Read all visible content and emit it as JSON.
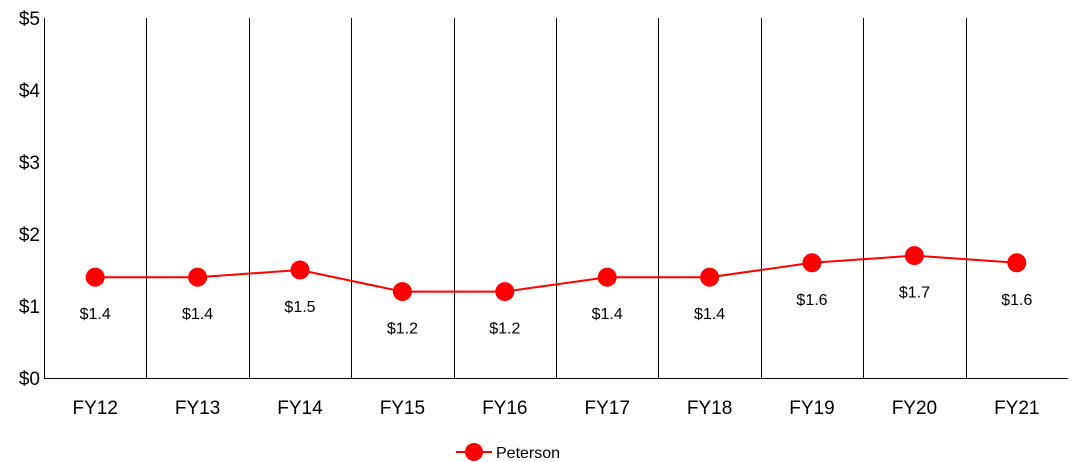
{
  "chart_data": {
    "type": "line",
    "title": "",
    "xlabel": "",
    "ylabel": "",
    "categories": [
      "FY12",
      "FY13",
      "FY14",
      "FY15",
      "FY16",
      "FY17",
      "FY18",
      "FY19",
      "FY20",
      "FY21"
    ],
    "series": [
      {
        "name": "Peterson",
        "color": "#ff0000",
        "values": [
          1.4,
          1.4,
          1.5,
          1.2,
          1.2,
          1.4,
          1.4,
          1.6,
          1.7,
          1.6
        ],
        "labels": [
          "$1.4",
          "$1.4",
          "$1.5",
          "$1.2",
          "$1.2",
          "$1.4",
          "$1.4",
          "$1.6",
          "$1.7",
          "$1.6"
        ]
      }
    ],
    "ylim": [
      0,
      5
    ],
    "yticks": [
      0,
      1,
      2,
      3,
      4,
      5
    ],
    "ytick_labels": [
      "$0",
      "$1",
      "$2",
      "$3",
      "$4",
      "$5"
    ],
    "grid": "vertical",
    "legend": "bottom-center"
  }
}
